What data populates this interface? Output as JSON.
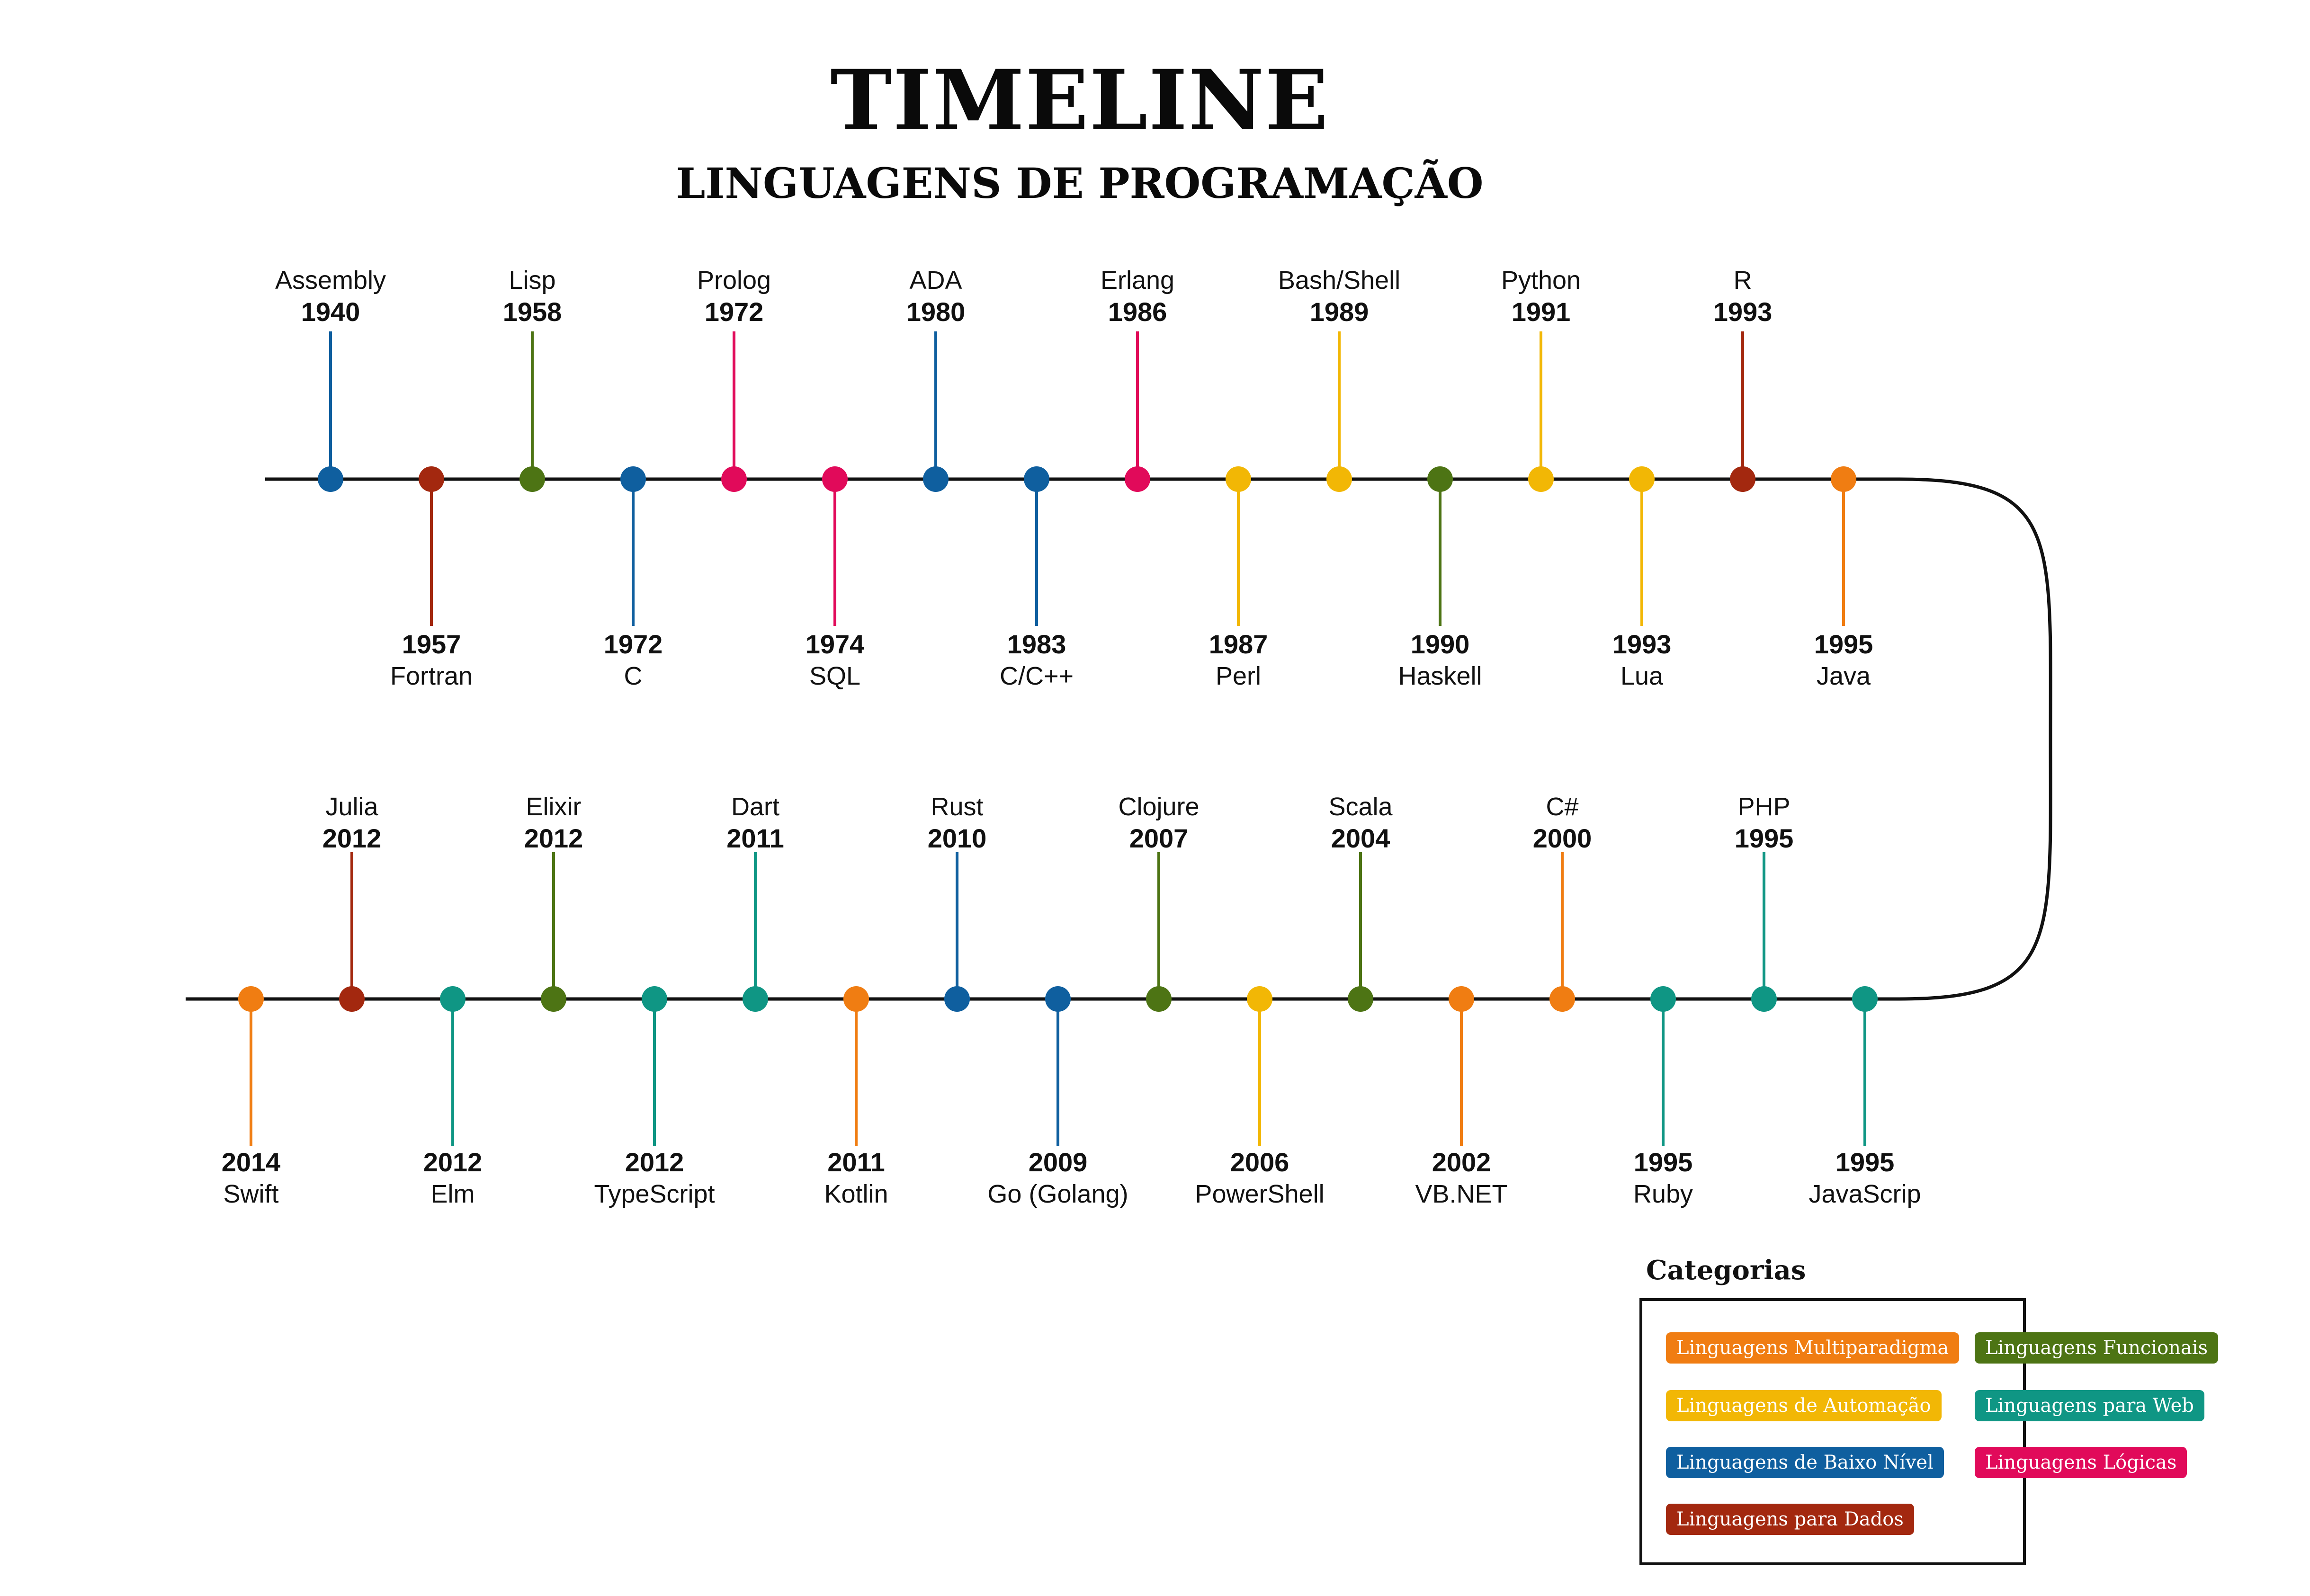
{
  "title": "TIMELINE",
  "subtitle": "LINGUAGENS DE PROGRAMAÇÃO",
  "colors": {
    "multiparadigma": "#f07d12",
    "automacao": "#f2b705",
    "baixo_nivel": "#0f5f9f",
    "dados": "#a3280f",
    "funcionais": "#4d7414",
    "web": "#0f9684",
    "logicas": "#e10a5a",
    "line": "#111111"
  },
  "timeline": {
    "row1": [
      {
        "name": "Assembly",
        "year": "1940",
        "cat": "baixo_nivel",
        "pos": "top"
      },
      {
        "name": "Fortran",
        "year": "1957",
        "cat": "dados",
        "pos": "bottom"
      },
      {
        "name": "Lisp",
        "year": "1958",
        "cat": "funcionais",
        "pos": "top"
      },
      {
        "name": "C",
        "year": "1972",
        "cat": "baixo_nivel",
        "pos": "bottom"
      },
      {
        "name": "Prolog",
        "year": "1972",
        "cat": "logicas",
        "pos": "top"
      },
      {
        "name": "SQL",
        "year": "1974",
        "cat": "logicas",
        "pos": "bottom"
      },
      {
        "name": "ADA",
        "year": "1980",
        "cat": "baixo_nivel",
        "pos": "top"
      },
      {
        "name": "C/C++",
        "year": "1983",
        "cat": "baixo_nivel",
        "pos": "bottom"
      },
      {
        "name": "Erlang",
        "year": "1986",
        "cat": "logicas",
        "pos": "top"
      },
      {
        "name": "Perl",
        "year": "1987",
        "cat": "automacao",
        "pos": "bottom"
      },
      {
        "name": "Bash/Shell",
        "year": "1989",
        "cat": "automacao",
        "pos": "top"
      },
      {
        "name": "Haskell",
        "year": "1990",
        "cat": "funcionais",
        "pos": "bottom"
      },
      {
        "name": "Python",
        "year": "1991",
        "cat": "automacao",
        "pos": "top"
      },
      {
        "name": "Lua",
        "year": "1993",
        "cat": "automacao",
        "pos": "bottom"
      },
      {
        "name": "R",
        "year": "1993",
        "cat": "dados",
        "pos": "top"
      },
      {
        "name": "Java",
        "year": "1995",
        "cat": "multiparadigma",
        "pos": "bottom"
      }
    ],
    "row2": [
      {
        "name": "Swift",
        "year": "2014",
        "cat": "multiparadigma",
        "pos": "bottom"
      },
      {
        "name": "Julia",
        "year": "2012",
        "cat": "dados",
        "pos": "top"
      },
      {
        "name": "Elm",
        "year": "2012",
        "cat": "web",
        "pos": "bottom"
      },
      {
        "name": "Elixir",
        "year": "2012",
        "cat": "funcionais",
        "pos": "top"
      },
      {
        "name": "TypeScript",
        "year": "2012",
        "cat": "web",
        "pos": "bottom"
      },
      {
        "name": "Dart",
        "year": "2011",
        "cat": "web",
        "pos": "top"
      },
      {
        "name": "Kotlin",
        "year": "2011",
        "cat": "multiparadigma",
        "pos": "bottom"
      },
      {
        "name": "Rust",
        "year": "2010",
        "cat": "baixo_nivel",
        "pos": "top"
      },
      {
        "name": "Go (Golang)",
        "year": "2009",
        "cat": "baixo_nivel",
        "pos": "bottom"
      },
      {
        "name": "Clojure",
        "year": "2007",
        "cat": "funcionais",
        "pos": "top"
      },
      {
        "name": "PowerShell",
        "year": "2006",
        "cat": "automacao",
        "pos": "bottom"
      },
      {
        "name": "Scala",
        "year": "2004",
        "cat": "funcionais",
        "pos": "top"
      },
      {
        "name": "VB.NET",
        "year": "2002",
        "cat": "multiparadigma",
        "pos": "bottom"
      },
      {
        "name": "C#",
        "year": "2000",
        "cat": "multiparadigma",
        "pos": "top"
      },
      {
        "name": "Ruby",
        "year": "1995",
        "cat": "web",
        "pos": "bottom"
      },
      {
        "name": "PHP",
        "year": "1995",
        "cat": "web",
        "pos": "top"
      },
      {
        "name": "JavaScrip",
        "year": "1995",
        "cat": "web",
        "pos": "bottom"
      }
    ]
  },
  "legend": {
    "title": "Categorias",
    "items": [
      {
        "label": "Linguagens Multiparadigma",
        "cat": "multiparadigma"
      },
      {
        "label": "Linguagens Funcionais",
        "cat": "funcionais"
      },
      {
        "label": "Linguagens de Automação",
        "cat": "automacao"
      },
      {
        "label": "Linguagens para Web",
        "cat": "web"
      },
      {
        "label": "Linguagens de Baixo Nível",
        "cat": "baixo_nivel"
      },
      {
        "label": "Linguagens Lógicas",
        "cat": "logicas"
      },
      {
        "label": "Linguagens para Dados",
        "cat": "dados"
      }
    ]
  }
}
